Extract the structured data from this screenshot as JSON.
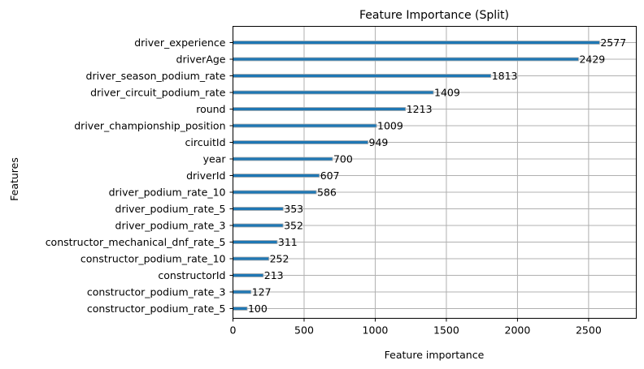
{
  "chart_data": {
    "type": "bar",
    "orientation": "horizontal",
    "title": "Feature Importance (Split)",
    "xlabel": "Feature importance",
    "ylabel": "Features",
    "xlim": [
      0,
      2835
    ],
    "xticks": [
      0,
      500,
      1000,
      1500,
      2000,
      2500
    ],
    "grid": true,
    "categories": [
      "driver_experience",
      "driverAge",
      "driver_season_podium_rate",
      "driver_circuit_podium_rate",
      "round",
      "driver_championship_position",
      "circuitId",
      "year",
      "driverId",
      "driver_podium_rate_10",
      "driver_podium_rate_5",
      "driver_podium_rate_3",
      "constructor_mechanical_dnf_rate_5",
      "constructor_podium_rate_10",
      "constructorId",
      "constructor_podium_rate_3",
      "constructor_podium_rate_5"
    ],
    "values": [
      2577,
      2429,
      1813,
      1409,
      1213,
      1009,
      949,
      700,
      607,
      586,
      353,
      352,
      311,
      252,
      213,
      127,
      100
    ],
    "colors": {
      "bar": "#1f77b4",
      "bar_edge": "#aaaaaa",
      "grid": "#b0b0b0"
    }
  }
}
